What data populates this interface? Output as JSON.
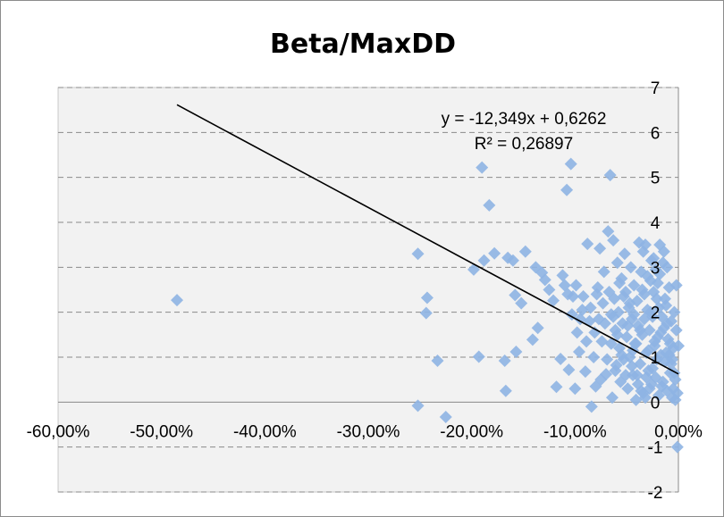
{
  "chart_data": {
    "type": "scatter",
    "title": "Beta/MaxDD",
    "xlabel": "",
    "ylabel": "",
    "xlim": [
      -0.6,
      0.0
    ],
    "ylim": [
      -2,
      7
    ],
    "x_ticks": [
      -0.6,
      -0.5,
      -0.4,
      -0.3,
      -0.2,
      -0.1,
      0.0
    ],
    "x_tick_labels": [
      "-60,00%",
      "-50,00%",
      "-40,00%",
      "-30,00%",
      "-20,00%",
      "-10,00%",
      "0,00%"
    ],
    "y_ticks": [
      -2,
      -1,
      0,
      1,
      2,
      3,
      4,
      5,
      6,
      7
    ],
    "y_tick_labels": [
      "-2",
      "-1",
      "0",
      "1",
      "2",
      "3",
      "4",
      "5",
      "6",
      "7"
    ],
    "grid": "horizontal dashed",
    "legend": "none",
    "marker": "diamond",
    "marker_color": "#8EB4E3",
    "trendline": {
      "slope": -12.349,
      "intercept": 0.6262,
      "x_range": [
        -0.485,
        0.0
      ],
      "equation_label": "y = -12,349x + 0,6262",
      "r2_label": "R² = 0,26897",
      "color": "#000000"
    },
    "points": [
      [
        -0.485,
        2.27
      ],
      [
        -0.252,
        3.3
      ],
      [
        -0.252,
        -0.08
      ],
      [
        -0.243,
        2.32
      ],
      [
        -0.244,
        1.98
      ],
      [
        -0.233,
        0.92
      ],
      [
        -0.225,
        -0.33
      ],
      [
        -0.198,
        2.95
      ],
      [
        -0.193,
        1.01
      ],
      [
        -0.19,
        5.22
      ],
      [
        -0.188,
        3.15
      ],
      [
        -0.183,
        4.38
      ],
      [
        -0.178,
        3.31
      ],
      [
        -0.168,
        0.92
      ],
      [
        -0.167,
        0.25
      ],
      [
        -0.165,
        3.21
      ],
      [
        -0.16,
        3.15
      ],
      [
        -0.158,
        2.38
      ],
      [
        -0.157,
        1.12
      ],
      [
        -0.152,
        2.2
      ],
      [
        -0.148,
        3.35
      ],
      [
        -0.141,
        1.39
      ],
      [
        -0.138,
        3.0
      ],
      [
        -0.136,
        1.65
      ],
      [
        -0.132,
        2.88
      ],
      [
        -0.129,
        2.72
      ],
      [
        -0.125,
        2.5
      ],
      [
        -0.121,
        2.26
      ],
      [
        -0.118,
        0.34
      ],
      [
        -0.114,
        0.96
      ],
      [
        -0.112,
        2.82
      ],
      [
        -0.11,
        2.6
      ],
      [
        -0.108,
        4.72
      ],
      [
        -0.106,
        0.72
      ],
      [
        -0.104,
        5.3
      ],
      [
        -0.102,
        2.35
      ],
      [
        -0.1,
        0.3
      ],
      [
        -0.098,
        1.55
      ],
      [
        -0.096,
        1.12
      ],
      [
        -0.093,
        2.05
      ],
      [
        -0.09,
        0.68
      ],
      [
        -0.088,
        3.52
      ],
      [
        -0.086,
        1.8
      ],
      [
        -0.084,
        -0.1
      ],
      [
        -0.082,
        1.0
      ],
      [
        -0.08,
        0.35
      ],
      [
        -0.078,
        2.55
      ],
      [
        -0.076,
        3.42
      ],
      [
        -0.074,
        1.35
      ],
      [
        -0.072,
        2.9
      ],
      [
        -0.07,
        0.62
      ],
      [
        -0.068,
        3.8
      ],
      [
        -0.066,
        5.05
      ],
      [
        -0.065,
        1.95
      ],
      [
        -0.064,
        0.1
      ],
      [
        -0.063,
        3.6
      ],
      [
        -0.062,
        2.3
      ],
      [
        -0.061,
        1.6
      ],
      [
        -0.06,
        0.82
      ],
      [
        -0.059,
        3.1
      ],
      [
        -0.058,
        2.0
      ],
      [
        -0.057,
        1.2
      ],
      [
        -0.056,
        0.45
      ],
      [
        -0.055,
        2.75
      ],
      [
        -0.054,
        1.75
      ],
      [
        -0.053,
        0.95
      ],
      [
        -0.052,
        3.3
      ],
      [
        -0.051,
        2.45
      ],
      [
        -0.05,
        1.45
      ],
      [
        -0.049,
        0.3
      ],
      [
        -0.048,
        2.1
      ],
      [
        -0.047,
        1.0
      ],
      [
        -0.046,
        3.0
      ],
      [
        -0.045,
        1.85
      ],
      [
        -0.044,
        0.6
      ],
      [
        -0.043,
        2.6
      ],
      [
        -0.042,
        1.3
      ],
      [
        -0.041,
        0.05
      ],
      [
        -0.04,
        2.25
      ],
      [
        -0.039,
        1.7
      ],
      [
        -0.038,
        3.55
      ],
      [
        -0.037,
        0.85
      ],
      [
        -0.036,
        2.9
      ],
      [
        -0.035,
        1.5
      ],
      [
        -0.034,
        0.2
      ],
      [
        -0.033,
        2.4
      ],
      [
        -0.032,
        3.5
      ],
      [
        -0.031,
        1.1
      ],
      [
        -0.03,
        2.05
      ],
      [
        -0.029,
        0.7
      ],
      [
        -0.028,
        1.6
      ],
      [
        -0.027,
        2.7
      ],
      [
        -0.026,
        0.4
      ],
      [
        -0.025,
        1.9
      ],
      [
        -0.024,
        3.2
      ],
      [
        -0.023,
        1.25
      ],
      [
        -0.022,
        0.55
      ],
      [
        -0.021,
        2.3
      ],
      [
        -0.02,
        1.45
      ],
      [
        -0.019,
        0.15
      ],
      [
        -0.018,
        2.85
      ],
      [
        -0.017,
        1.05
      ],
      [
        -0.016,
        0.35
      ],
      [
        -0.015,
        3.1
      ],
      [
        -0.014,
        1.65
      ],
      [
        -0.013,
        0.9
      ],
      [
        -0.012,
        2.15
      ],
      [
        -0.011,
        0.25
      ],
      [
        -0.01,
        1.4
      ],
      [
        -0.009,
        2.55
      ],
      [
        -0.008,
        0.65
      ],
      [
        -0.007,
        1.8
      ],
      [
        -0.006,
        0.1
      ],
      [
        -0.005,
        1.2
      ],
      [
        -0.004,
        2.0
      ],
      [
        -0.003,
        0.5
      ],
      [
        -0.002,
        1.6
      ],
      [
        -0.001,
        0.2
      ],
      [
        -0.002,
        2.6
      ],
      [
        0.0,
        1.25
      ],
      [
        -0.001,
        -1.0
      ],
      [
        -0.003,
        0.05
      ],
      [
        -0.005,
        0.3
      ],
      [
        -0.007,
        0.85
      ],
      [
        -0.009,
        1.05
      ],
      [
        -0.011,
        1.75
      ],
      [
        -0.013,
        2.3
      ],
      [
        -0.015,
        0.45
      ],
      [
        -0.017,
        1.55
      ],
      [
        -0.019,
        2.1
      ],
      [
        -0.021,
        0.95
      ],
      [
        -0.023,
        1.35
      ],
      [
        -0.025,
        0.75
      ],
      [
        -0.027,
        2.0
      ],
      [
        -0.029,
        1.15
      ],
      [
        -0.031,
        0.55
      ],
      [
        -0.033,
        1.85
      ],
      [
        -0.035,
        2.5
      ],
      [
        -0.037,
        1.6
      ],
      [
        -0.039,
        0.4
      ],
      [
        -0.041,
        1.3
      ],
      [
        -0.043,
        1.95
      ],
      [
        -0.045,
        0.8
      ],
      [
        -0.047,
        2.2
      ],
      [
        -0.049,
        1.7
      ],
      [
        -0.051,
        0.6
      ],
      [
        -0.053,
        2.35
      ],
      [
        -0.055,
        1.05
      ],
      [
        -0.057,
        2.65
      ],
      [
        -0.059,
        1.5
      ],
      [
        -0.061,
        0.7
      ],
      [
        -0.063,
        1.9
      ],
      [
        -0.065,
        1.3
      ],
      [
        -0.067,
        2.45
      ],
      [
        -0.069,
        0.95
      ],
      [
        -0.071,
        1.75
      ],
      [
        -0.073,
        2.2
      ],
      [
        -0.075,
        0.5
      ],
      [
        -0.077,
        1.85
      ],
      [
        -0.079,
        2.4
      ],
      [
        -0.081,
        1.55
      ],
      [
        -0.085,
        2.1
      ],
      [
        -0.089,
        1.35
      ],
      [
        -0.092,
        2.35
      ],
      [
        -0.095,
        1.85
      ],
      [
        -0.099,
        2.6
      ],
      [
        -0.103,
        1.95
      ],
      [
        -0.107,
        2.4
      ],
      [
        -0.011,
        3.0
      ],
      [
        -0.014,
        3.35
      ],
      [
        -0.018,
        3.5
      ],
      [
        -0.022,
        2.95
      ],
      [
        -0.026,
        3.15
      ],
      [
        -0.03,
        2.8
      ],
      [
        -0.034,
        3.35
      ],
      [
        -0.006,
        0.95
      ],
      [
        -0.004,
        0.65
      ],
      [
        -0.008,
        1.3
      ],
      [
        -0.012,
        1.1
      ],
      [
        -0.016,
        1.9
      ],
      [
        -0.02,
        2.65
      ],
      [
        -0.024,
        2.45
      ],
      [
        -0.028,
        0.3
      ],
      [
        -0.032,
        0.1
      ],
      [
        -0.036,
        0.25
      ],
      [
        -0.04,
        0.6
      ],
      [
        -0.044,
        1.15
      ]
    ]
  }
}
